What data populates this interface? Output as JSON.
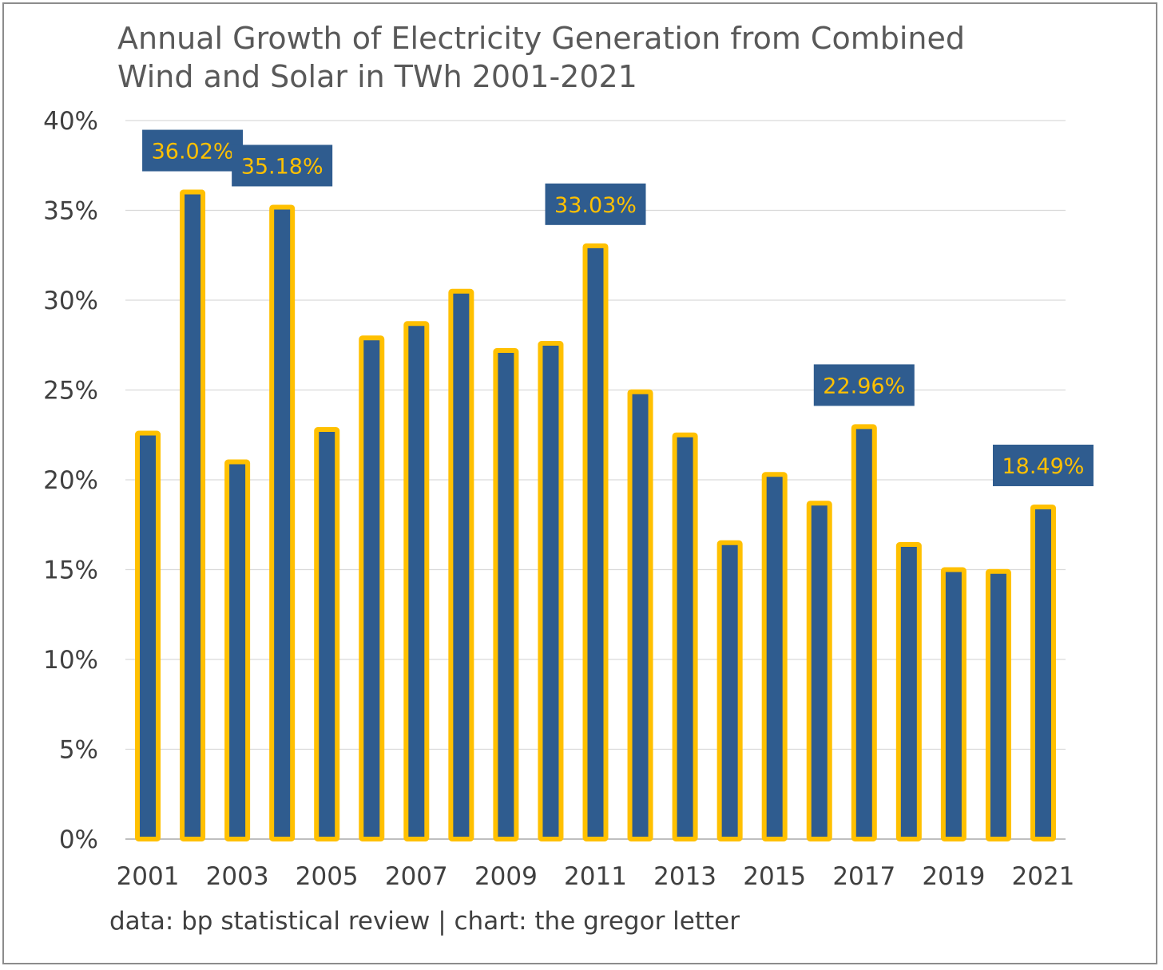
{
  "chart_data": {
    "type": "bar",
    "title_lines": [
      "Annual Growth of Electricity Generation from Combined",
      "Wind and Solar in TWh 2001-2021"
    ],
    "categories": [
      "2001",
      "2002",
      "2003",
      "2004",
      "2005",
      "2006",
      "2007",
      "2008",
      "2009",
      "2010",
      "2011",
      "2012",
      "2013",
      "2014",
      "2015",
      "2016",
      "2017",
      "2018",
      "2019",
      "2020",
      "2021"
    ],
    "x_tick_labels": [
      "2001",
      "2003",
      "2005",
      "2007",
      "2009",
      "2011",
      "2013",
      "2015",
      "2017",
      "2019",
      "2021"
    ],
    "values": [
      22.6,
      36.02,
      21.0,
      35.18,
      22.8,
      27.9,
      28.7,
      30.5,
      27.2,
      27.6,
      33.03,
      24.9,
      22.5,
      16.5,
      20.3,
      18.7,
      22.96,
      16.4,
      15.0,
      14.9,
      18.49
    ],
    "data_labels": [
      {
        "index": 1,
        "text": "36.02%"
      },
      {
        "index": 3,
        "text": "35.18%"
      },
      {
        "index": 10,
        "text": "33.03%"
      },
      {
        "index": 16,
        "text": "22.96%"
      },
      {
        "index": 20,
        "text": "18.49%"
      }
    ],
    "y_ticks": [
      "0%",
      "5%",
      "10%",
      "15%",
      "20%",
      "25%",
      "30%",
      "35%",
      "40%"
    ],
    "ylim": [
      0,
      40
    ],
    "xlabel": "",
    "ylabel": "",
    "grid": true,
    "legend": "none"
  },
  "colors": {
    "bar_fill": "#2f5c8f",
    "bar_outline": "#ffc000",
    "label_box": "#2f5c8f",
    "label_text": "#ffc000",
    "gridline": "#d9d9d9",
    "axis_text": "#404040",
    "title_text": "#595959"
  },
  "source_note": "data: bp statistical review | chart: the gregor letter"
}
